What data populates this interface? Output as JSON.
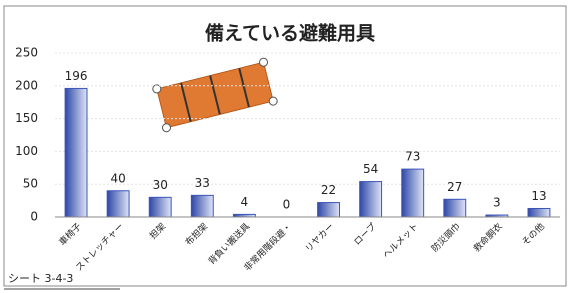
{
  "chart_data": {
    "type": "bar",
    "title": "備えている避難用具",
    "categories": [
      "車椅子",
      "ストレッチャー",
      "担架",
      "布担架",
      "背負い搬送具",
      "非常用階段避・",
      "リヤカー",
      "ロープ",
      "ヘルメット",
      "防災頭巾",
      "救命胴衣",
      "その他"
    ],
    "values": [
      196,
      40,
      30,
      33,
      4,
      0,
      22,
      54,
      73,
      27,
      3,
      13
    ],
    "color": "#3a55b8",
    "ylim": [
      0,
      250
    ],
    "yticks": [
      0,
      50,
      100,
      150,
      200,
      250
    ],
    "grid": true
  },
  "footer": "シート 3-4-3"
}
